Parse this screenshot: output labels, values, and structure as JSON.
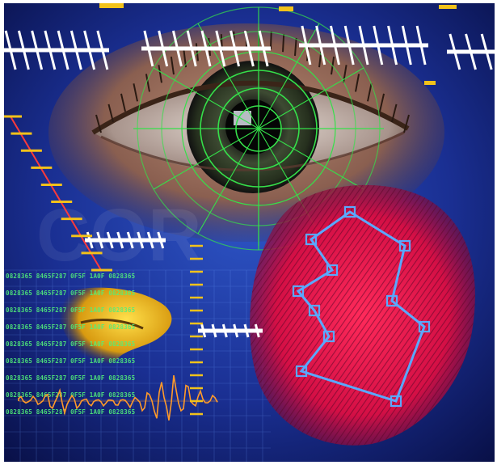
{
  "scene": {
    "subject": "biometric identification collage",
    "elements": [
      "eye-with-targeting-reticle",
      "fingerprint-with-blue-minutiae-polygon",
      "yellow-scanned-face-profile",
      "orange-waveform",
      "green-data-code-rows",
      "ruler-tick-scales",
      "watermark"
    ],
    "colors": {
      "background_dark": "#08104a",
      "background_mid": "#1c3aa8",
      "reticle_green": "#35e04a",
      "fingerprint_red": "#e0124a",
      "polygon_blue": "#5aa8ff",
      "face_yellow": "#f2c21a",
      "waveform_orange": "#ff9a2a",
      "code_green": "#52f07a",
      "tick_white": "#ffffff"
    }
  },
  "code_rows": [
    "0828365 8465F287 0F5F 1A0F 0828365",
    "0828365 8465F287 0F5F 1A0F 0828365",
    "0828365 8465F287 0F5F 1A0F 0828365",
    "0828365 8465F287 0F5F 1A0F 0828365",
    "0828365 8465F287 0F5F 1A0F 0828365",
    "0828365 8465F287 0F5F 1A0F 0828365",
    "0828365 8465F287 0F5F 1A0F 0828365",
    "0828365 8465F287 0F5F 1A0F 0828365",
    "0828365 8465F287 0F5F 1A0F 0828365"
  ]
}
